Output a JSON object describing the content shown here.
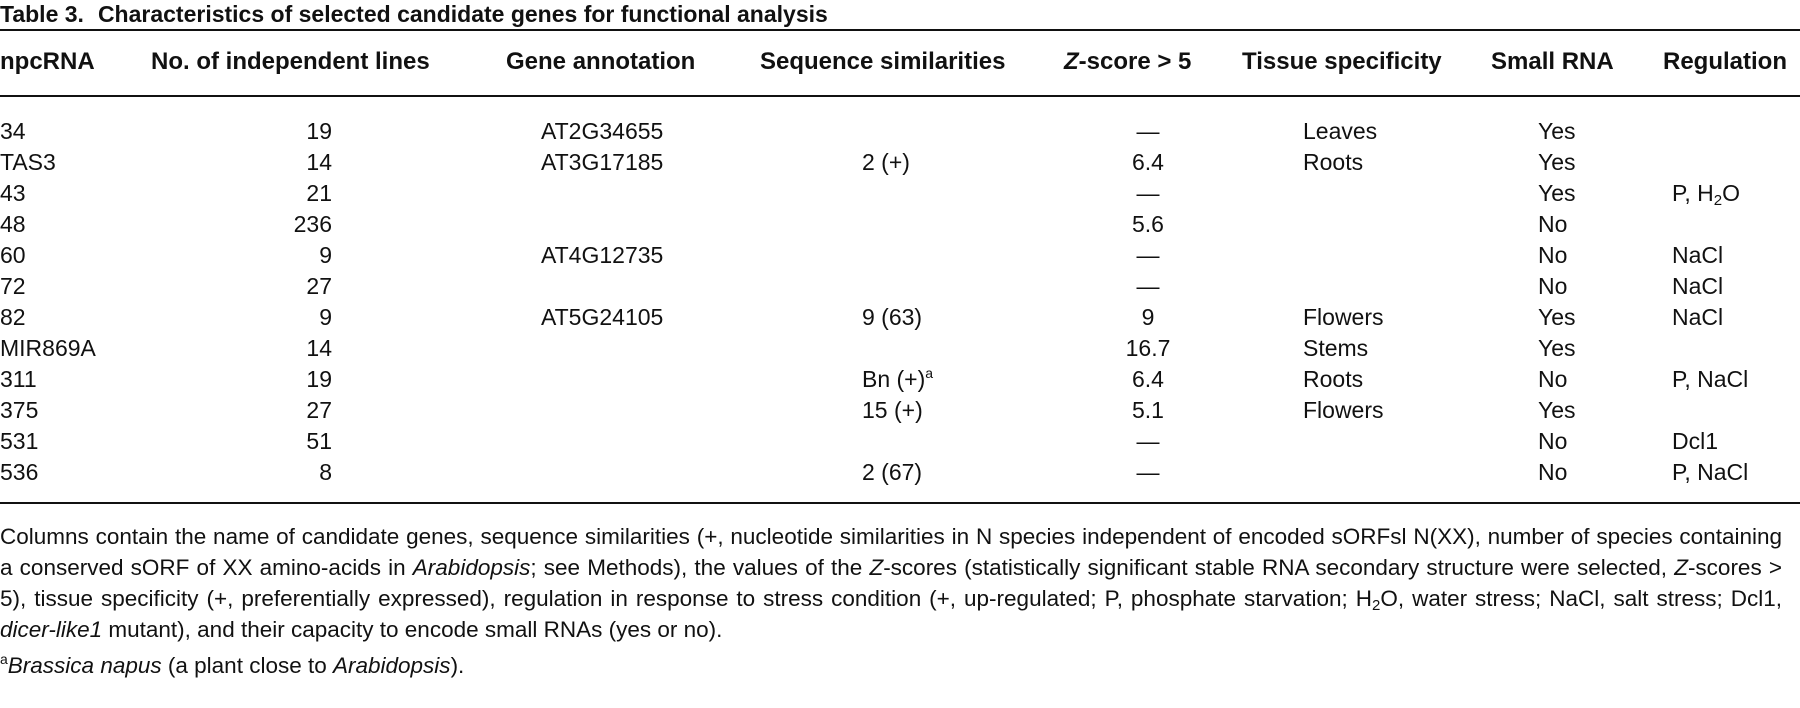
{
  "table": {
    "label": "Table 3.",
    "title": "Characteristics of selected candidate genes for functional analysis",
    "headers": {
      "npcrna": "npcRNA",
      "lines": "No. of independent lines",
      "gene": "Gene annotation",
      "seq": "Sequence similarities",
      "z_letter": "Z",
      "z_rest": "-score > 5",
      "tissue": "Tissue specificity",
      "small": "Small RNA",
      "reg": "Regulation"
    },
    "rows": [
      {
        "npcrna": "34",
        "lines": "19",
        "gene": "AT2G34655",
        "seq": "",
        "seq_sup": "",
        "z": "—",
        "tissue": "Leaves",
        "small": "Yes",
        "reg": "",
        "reg_sub": "",
        "reg_end": ""
      },
      {
        "npcrna": "TAS3",
        "lines": "14",
        "gene": "AT3G17185",
        "seq": "2 (+)",
        "seq_sup": "",
        "z": "6.4",
        "tissue": "Roots",
        "small": "Yes",
        "reg": "",
        "reg_sub": "",
        "reg_end": ""
      },
      {
        "npcrna": "43",
        "lines": "21",
        "gene": "",
        "seq": "",
        "seq_sup": "",
        "z": "—",
        "tissue": "",
        "small": "Yes",
        "reg": "P, H",
        "reg_sub": "2",
        "reg_end": "O"
      },
      {
        "npcrna": "48",
        "lines": "236",
        "gene": "",
        "seq": "",
        "seq_sup": "",
        "z": "5.6",
        "tissue": "",
        "small": "No",
        "reg": "",
        "reg_sub": "",
        "reg_end": ""
      },
      {
        "npcrna": "60",
        "lines": "9",
        "gene": "AT4G12735",
        "seq": "",
        "seq_sup": "",
        "z": "—",
        "tissue": "",
        "small": "No",
        "reg": "NaCl",
        "reg_sub": "",
        "reg_end": ""
      },
      {
        "npcrna": "72",
        "lines": "27",
        "gene": "",
        "seq": "",
        "seq_sup": "",
        "z": "—",
        "tissue": "",
        "small": "No",
        "reg": "NaCl",
        "reg_sub": "",
        "reg_end": ""
      },
      {
        "npcrna": "82",
        "lines": "9",
        "gene": "AT5G24105",
        "seq": "9 (63)",
        "seq_sup": "",
        "z": "9",
        "tissue": "Flowers",
        "small": "Yes",
        "reg": "NaCl",
        "reg_sub": "",
        "reg_end": ""
      },
      {
        "npcrna": "MIR869A",
        "lines": "14",
        "gene": "",
        "seq": "",
        "seq_sup": "",
        "z": "16.7",
        "tissue": "Stems",
        "small": "Yes",
        "reg": "",
        "reg_sub": "",
        "reg_end": ""
      },
      {
        "npcrna": "311",
        "lines": "19",
        "gene": "",
        "seq": "Bn (+)",
        "seq_sup": "a",
        "z": "6.4",
        "tissue": "Roots",
        "small": "No",
        "reg": "P, NaCl",
        "reg_sub": "",
        "reg_end": ""
      },
      {
        "npcrna": "375",
        "lines": "27",
        "gene": "",
        "seq": "15 (+)",
        "seq_sup": "",
        "z": "5.1",
        "tissue": "Flowers",
        "small": "Yes",
        "reg": "",
        "reg_sub": "",
        "reg_end": ""
      },
      {
        "npcrna": "531",
        "lines": "51",
        "gene": "",
        "seq": "",
        "seq_sup": "",
        "z": "—",
        "tissue": "",
        "small": "No",
        "reg": "Dcl1",
        "reg_sub": "",
        "reg_end": ""
      },
      {
        "npcrna": "536",
        "lines": "8",
        "gene": "",
        "seq": "2 (67)",
        "seq_sup": "",
        "z": "—",
        "tissue": "",
        "small": "No",
        "reg": "P, NaCl",
        "reg_sub": "",
        "reg_end": ""
      }
    ]
  },
  "footnote": {
    "p1": "Columns contain the name of candidate genes, sequence similarities (+, nucleotide similarities in N species independent of encoded sORFsl N(XX), number of species containing a conserved sORF of XX amino-acids in ",
    "p1_it": "Arabidopsis",
    "p2": "; see Methods), the values of the ",
    "p2_it": "Z",
    "p3": "-scores (statistically significant stable RNA secondary structure were selected, ",
    "p3_it": "Z",
    "p4": "-scores > 5), tissue specificity (+, preferentially expressed), regulation in response to stress condition (+, up-regulated; P, phosphate starvation; H",
    "p4_sub": "2",
    "p5": "O, water stress; NaCl, salt stress; Dcl1, ",
    "p5_it": "dicer-like1",
    "p6": " mutant), and their capacity to encode small RNAs (yes or no).",
    "note_sup": "a",
    "note_it1": "Brassica napus",
    "note_mid": " (a plant close to ",
    "note_it2": "Arabidopsis",
    "note_end": ")."
  }
}
